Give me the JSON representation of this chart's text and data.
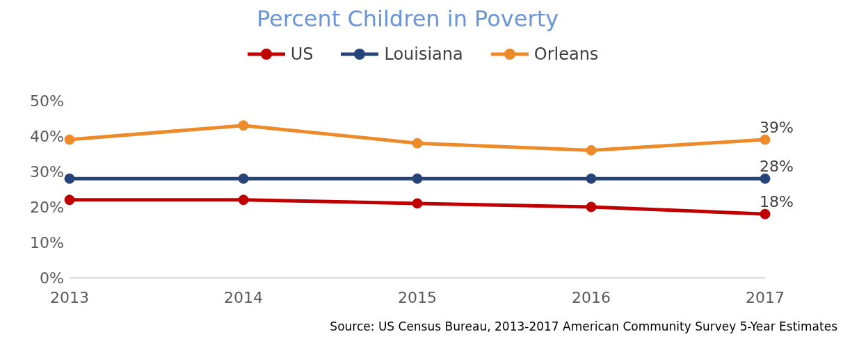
{
  "chart_data": {
    "type": "line",
    "title": "Percent Children in Poverty",
    "categories": [
      "2013",
      "2014",
      "2015",
      "2016",
      "2017"
    ],
    "series": [
      {
        "name": "US",
        "color": "#c00000",
        "values": [
          22,
          22,
          21,
          20,
          18
        ],
        "value_labels": [
          null,
          null,
          null,
          null,
          "18%"
        ]
      },
      {
        "name": "Louisiana",
        "color": "#264478",
        "values": [
          28,
          28,
          28,
          28,
          28
        ],
        "value_labels": [
          null,
          null,
          null,
          null,
          "28%"
        ]
      },
      {
        "name": "Orleans",
        "color": "#ed8b2a",
        "values": [
          39,
          43,
          38,
          36,
          39
        ],
        "value_labels": [
          null,
          null,
          null,
          null,
          "39%"
        ]
      }
    ],
    "ylim": [
      0,
      50
    ],
    "yticks": [
      {
        "value": 0,
        "label": "0%"
      },
      {
        "value": 10,
        "label": "10%"
      },
      {
        "value": 20,
        "label": "20%"
      },
      {
        "value": 30,
        "label": "30%"
      },
      {
        "value": 40,
        "label": "40%"
      },
      {
        "value": 50,
        "label": "50%"
      }
    ],
    "grid": false,
    "legend": "top",
    "marker": "circle",
    "line_style": "solid",
    "annotations": [
      "Source: US Census Bureau, 2013-2017 American Community Survey 5-Year Estimates"
    ]
  }
}
